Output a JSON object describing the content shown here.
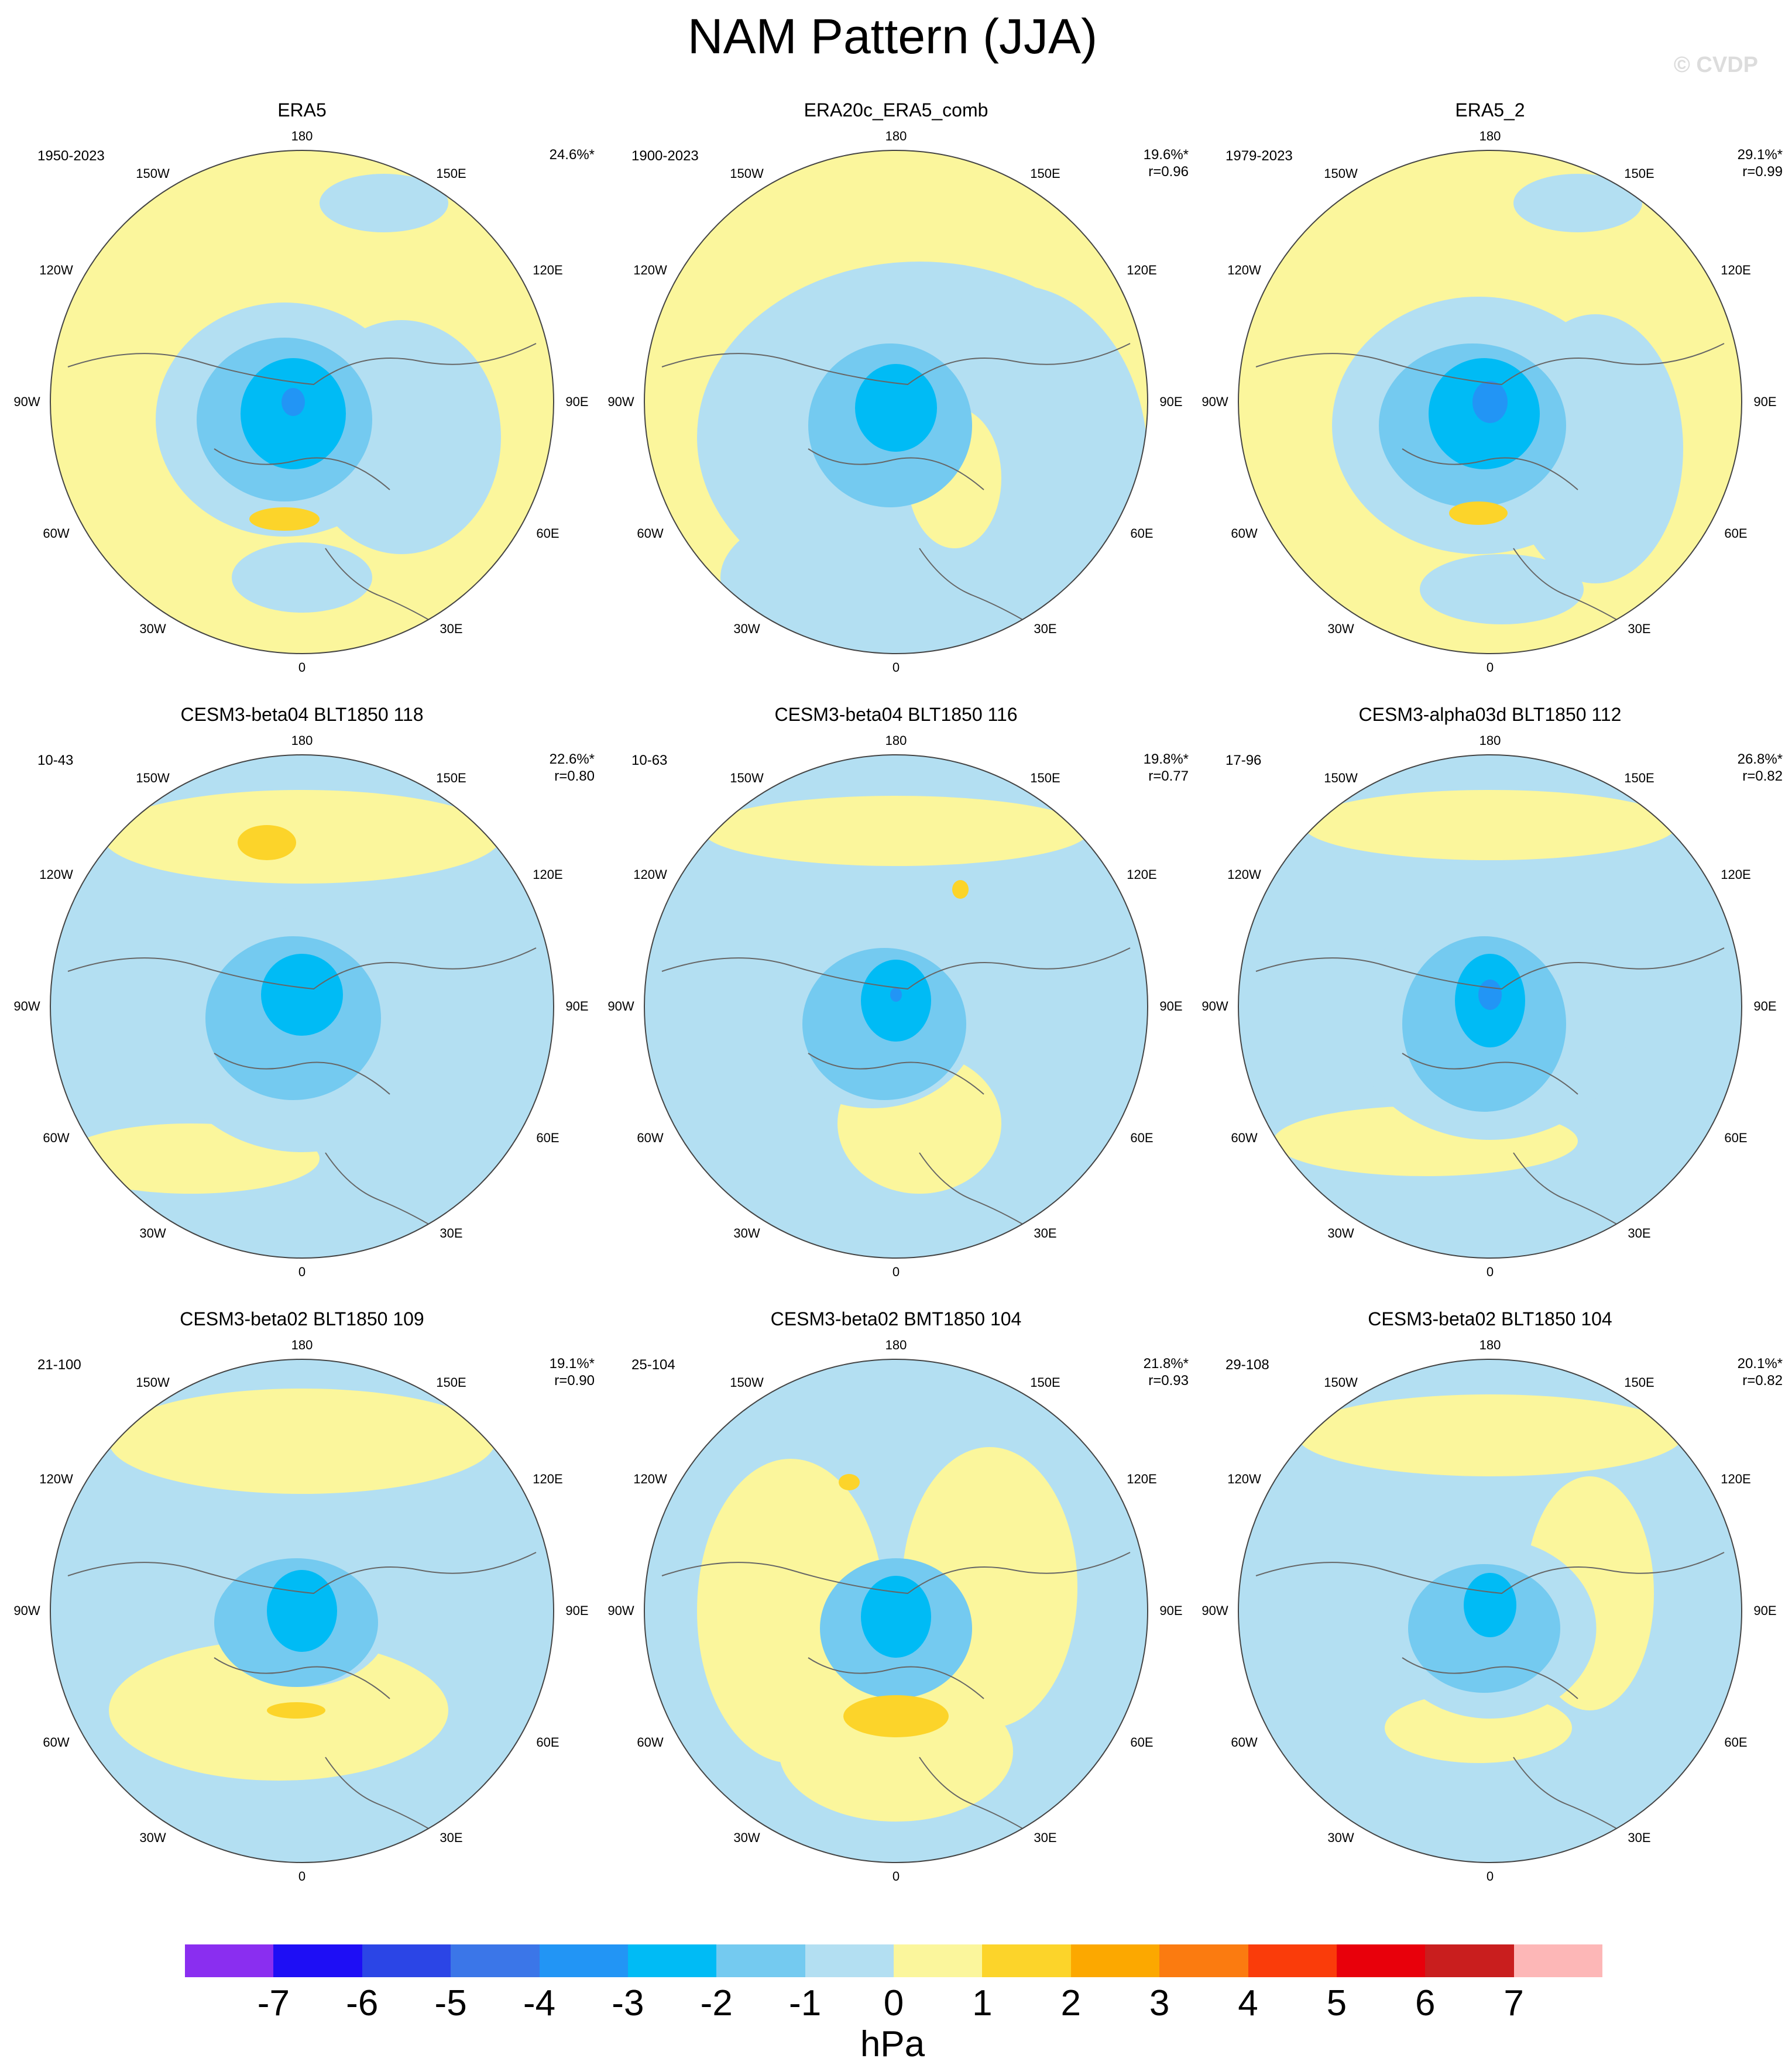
{
  "title": "NAM Pattern (JJA)",
  "watermark": "© CVDP",
  "units": "hPa",
  "lon_labels": {
    "top": "180",
    "bottom": "0",
    "left": "90W",
    "right": "90E",
    "ul1": "150W",
    "ul2": "120W",
    "ll1": "60W",
    "ll2": "30W",
    "ur1": "150E",
    "ur2": "120E",
    "lr1": "60E",
    "lr2": "30E"
  },
  "panels": [
    {
      "title": "ERA5",
      "years": "1950-2023",
      "pct": "24.6%*",
      "r": ""
    },
    {
      "title": "ERA20c_ERA5_comb",
      "years": "1900-2023",
      "pct": "19.6%*",
      "r": "r=0.96"
    },
    {
      "title": "ERA5_2",
      "years": "1979-2023",
      "pct": "29.1%*",
      "r": "r=0.99"
    },
    {
      "title": "CESM3-beta04 BLT1850 118",
      "years": "10-43",
      "pct": "22.6%*",
      "r": "r=0.80"
    },
    {
      "title": "CESM3-beta04 BLT1850 116",
      "years": "10-63",
      "pct": "19.8%*",
      "r": "r=0.77"
    },
    {
      "title": "CESM3-alpha03d BLT1850 112",
      "years": "17-96",
      "pct": "26.8%*",
      "r": "r=0.82"
    },
    {
      "title": "CESM3-beta02 BLT1850 109",
      "years": "21-100",
      "pct": "19.1%*",
      "r": "r=0.90"
    },
    {
      "title": "CESM3-beta02 BMT1850 104",
      "years": "25-104",
      "pct": "21.8%*",
      "r": "r=0.93"
    },
    {
      "title": "CESM3-beta02 BLT1850 104",
      "years": "29-108",
      "pct": "20.1%*",
      "r": "r=0.82"
    }
  ],
  "colorbar": {
    "colors": [
      "#8a2ef0",
      "#1e0ef5",
      "#2b45e6",
      "#3b76e8",
      "#2295f5",
      "#00bbf5",
      "#74caf0",
      "#b3dff2",
      "#fbf69c",
      "#fcd42a",
      "#fca800",
      "#fb7b10",
      "#fa3c0a",
      "#e8000b",
      "#c91e1e",
      "#fdb7b7"
    ],
    "labels": [
      "-7",
      "-6",
      "-5",
      "-4",
      "-3",
      "-2",
      "-1",
      "0",
      "1",
      "2",
      "3",
      "4",
      "5",
      "6",
      "7"
    ]
  },
  "colors": {
    "yellow": "#fbf69c",
    "lightblue": "#b3dff2",
    "blue1": "#74caf0",
    "blue2": "#00bbf5",
    "blue3": "#2295f5",
    "orange": "#fcd42a"
  }
}
